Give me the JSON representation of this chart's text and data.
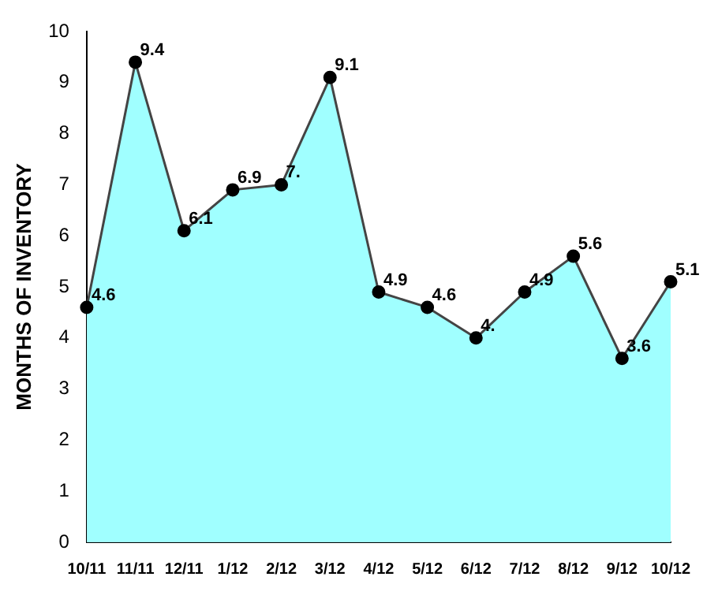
{
  "chart_data": {
    "type": "area",
    "ylabel": "MONTHS OF INVENTORY",
    "categories": [
      "10/11",
      "11/11",
      "12/11",
      "1/12",
      "2/12",
      "3/12",
      "4/12",
      "5/12",
      "6/12",
      "7/12",
      "8/12",
      "9/12",
      "10/12"
    ],
    "values": [
      4.6,
      9.4,
      6.1,
      6.9,
      7.0,
      9.1,
      4.9,
      4.6,
      4.0,
      4.9,
      5.6,
      3.6,
      5.1
    ],
    "value_labels": [
      "4.6",
      "9.4",
      "6.1",
      "6.9",
      "7.",
      "9.1",
      "4.9",
      "4.6",
      "4.",
      "4.9",
      "5.6",
      "3.6",
      "5.1"
    ],
    "color": "#a0ffff",
    "marker": "circle",
    "grid": false,
    "legend": false,
    "ylim": [
      0,
      10
    ],
    "yticks": [
      0,
      1,
      2,
      3,
      4,
      5,
      6,
      7,
      8,
      9,
      10
    ]
  }
}
